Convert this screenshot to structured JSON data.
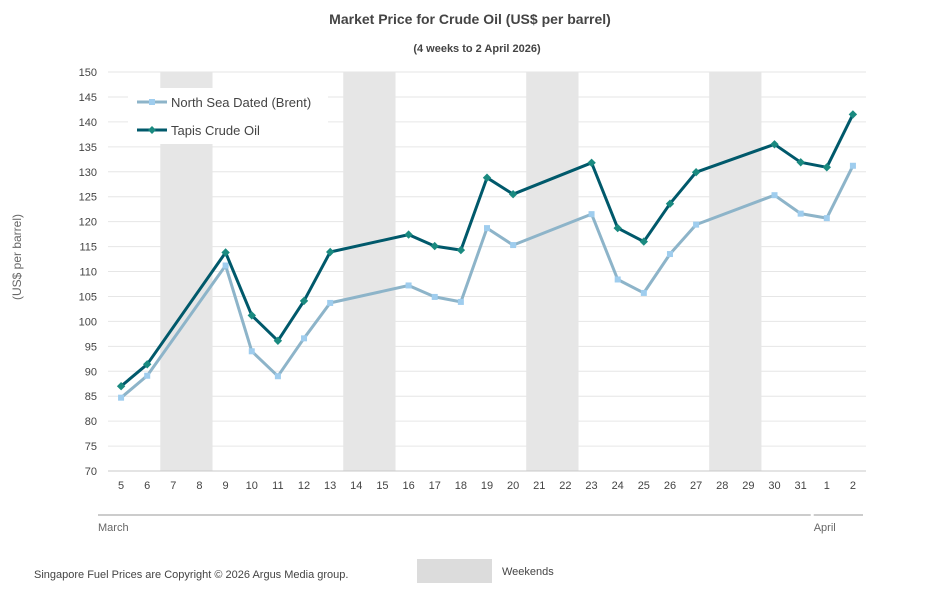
{
  "chart_data": {
    "type": "line",
    "title": "Market Price for Crude Oil (US$ per barrel)",
    "subtitle": "(4 weeks to 2 April 2026)",
    "xlabel": "",
    "ylabel": "(US$ per barrel)",
    "ylim": [
      70,
      150
    ],
    "ytick_step": 5,
    "grid": true,
    "categories": [
      "5",
      "6",
      "7",
      "8",
      "9",
      "10",
      "11",
      "12",
      "13",
      "14",
      "15",
      "16",
      "17",
      "18",
      "19",
      "20",
      "21",
      "22",
      "23",
      "24",
      "25",
      "26",
      "27",
      "28",
      "29",
      "30",
      "31",
      "1",
      "2"
    ],
    "month_groups": [
      {
        "label": "March",
        "from": "5",
        "to": "31"
      },
      {
        "label": "April",
        "from": "1",
        "to": "2"
      }
    ],
    "weekend_bands": [
      [
        "7",
        "8"
      ],
      [
        "14",
        "15"
      ],
      [
        "21",
        "22"
      ],
      [
        "28",
        "29"
      ]
    ],
    "series": [
      {
        "name": "North Sea Dated (Brent)",
        "color": "#8db4c9",
        "marker_color": "#9fcdee",
        "marker": "square",
        "values": [
          84.7,
          89.1,
          null,
          null,
          111.2,
          94.0,
          89.0,
          96.6,
          103.7,
          null,
          null,
          107.2,
          104.9,
          103.9,
          118.7,
          115.3,
          null,
          null,
          121.5,
          108.4,
          105.7,
          113.5,
          119.4,
          null,
          null,
          125.3,
          121.6,
          120.7,
          131.2
        ]
      },
      {
        "name": "Tapis Crude Oil",
        "color": "#00596b",
        "marker_color": "#1a8a80",
        "marker": "diamond",
        "values": [
          87.0,
          91.4,
          null,
          null,
          113.8,
          101.2,
          96.1,
          104.1,
          113.9,
          null,
          null,
          117.4,
          115.1,
          114.3,
          128.8,
          125.5,
          null,
          null,
          131.8,
          118.7,
          116.0,
          123.6,
          129.9,
          null,
          null,
          135.5,
          131.9,
          130.9,
          141.5
        ]
      }
    ],
    "legend": "top-left"
  },
  "legend_weekends_label": "Weekends",
  "weekend_color": "#e6e6e6",
  "copyright": "Singapore Fuel Prices are Copyright © 2026 Argus Media group."
}
